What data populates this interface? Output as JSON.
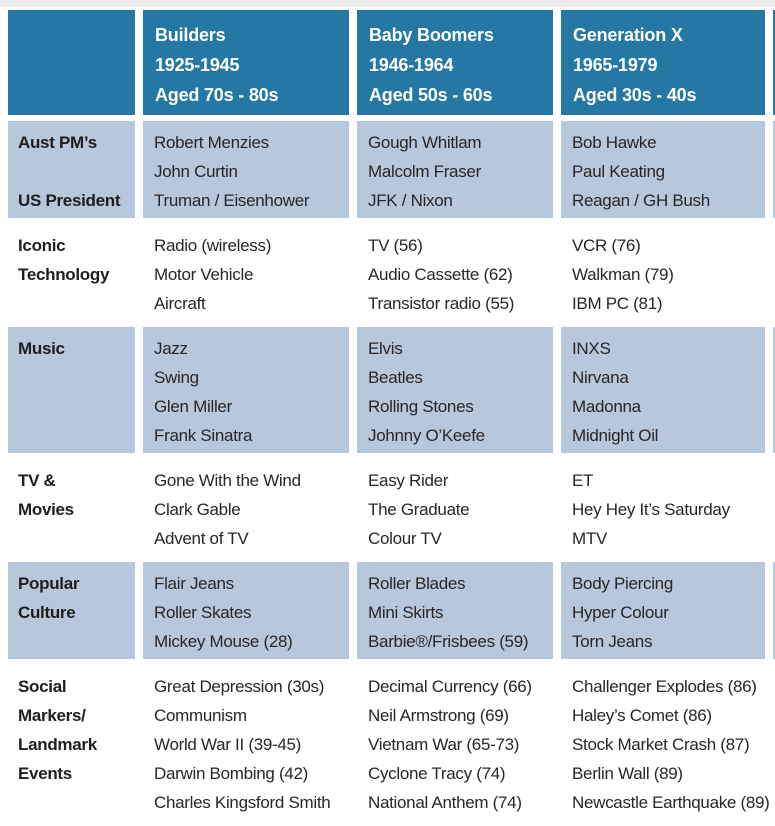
{
  "page": {
    "background": "#ffffff",
    "top_strip_color": "#edecea"
  },
  "colors": {
    "header_bg": "#2578a4",
    "shaded_row_bg": "#b7c7dc",
    "header_text": "#ffffff",
    "body_text": "#282626"
  },
  "table": {
    "header": {
      "columns": [
        {
          "title": "Builders",
          "years": "1925-1945",
          "aged": "Aged 70s - 80s"
        },
        {
          "title": "Baby Boomers",
          "years": "1946-1964",
          "aged": "Aged 50s - 60s"
        },
        {
          "title": "Generation X",
          "years": "1965-1979",
          "aged": "Aged 30s - 40s"
        }
      ]
    },
    "rows": [
      {
        "shaded": true,
        "label_lines": [
          "Aust PM’s",
          "",
          "US President"
        ],
        "cells": [
          [
            "Robert Menzies",
            "John Curtin",
            "Truman / Eisenhower"
          ],
          [
            "Gough Whitlam",
            "Malcolm Fraser",
            "JFK / Nixon"
          ],
          [
            "Bob Hawke",
            "Paul Keating",
            "Reagan / GH Bush"
          ]
        ]
      },
      {
        "shaded": false,
        "label_lines": [
          "Iconic",
          "Technology"
        ],
        "cells": [
          [
            "Radio (wireless)",
            "Motor Vehicle",
            "Aircraft"
          ],
          [
            "TV (56)",
            "Audio Cassette (62)",
            "Transistor radio (55)"
          ],
          [
            "VCR (76)",
            "Walkman (79)",
            "IBM PC (81)"
          ]
        ]
      },
      {
        "shaded": true,
        "label_lines": [
          "Music"
        ],
        "cells": [
          [
            "Jazz",
            "Swing",
            "Glen Miller",
            "Frank Sinatra"
          ],
          [
            "Elvis",
            "Beatles",
            "Rolling Stones",
            "Johnny O’Keefe"
          ],
          [
            "INXS",
            "Nirvana",
            "Madonna",
            "Midnight Oil"
          ]
        ]
      },
      {
        "shaded": false,
        "label_lines": [
          "TV &",
          "Movies"
        ],
        "cells": [
          [
            "Gone With the Wind",
            "Clark Gable",
            "Advent of TV"
          ],
          [
            "Easy Rider",
            "The Graduate",
            "Colour TV"
          ],
          [
            "ET",
            "Hey Hey It’s Saturday",
            "MTV"
          ]
        ]
      },
      {
        "shaded": true,
        "label_lines": [
          "Popular",
          "Culture"
        ],
        "cells": [
          [
            "Flair Jeans",
            "Roller Skates",
            "Mickey Mouse (28)"
          ],
          [
            "Roller Blades",
            "Mini Skirts",
            "Barbie®/Frisbees (59)"
          ],
          [
            "Body Piercing",
            "Hyper Colour",
            "Torn Jeans"
          ]
        ]
      },
      {
        "shaded": false,
        "label_lines": [
          "Social",
          "Markers/",
          "Landmark",
          "Events"
        ],
        "cells": [
          [
            "Great Depression (30s)",
            "Communism",
            "World War II (39-45)",
            "Darwin Bombing (42)",
            "Charles Kingsford Smith"
          ],
          [
            "Decimal Currency (66)",
            "Neil Armstrong (69)",
            "Vietnam War (65-73)",
            "Cyclone Tracy (74)",
            "National Anthem (74)"
          ],
          [
            "Challenger Explodes (86)",
            "Haley’s Comet (86)",
            "Stock Market Crash (87)",
            "Berlin Wall (89)",
            "Newcastle Earthquake (89)"
          ]
        ]
      }
    ]
  }
}
